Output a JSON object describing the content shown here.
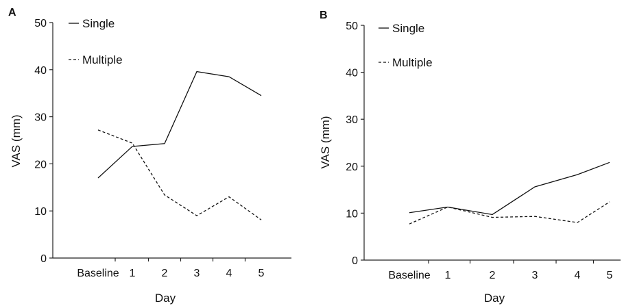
{
  "chart_data": [
    {
      "type": "line",
      "panel_label": "A",
      "categories": [
        "Baseline",
        "1",
        "2",
        "3",
        "4",
        "5"
      ],
      "series": [
        {
          "name": "Single",
          "style": "solid",
          "values": [
            17,
            23.7,
            24.3,
            39.6,
            38.5,
            34.5
          ]
        },
        {
          "name": "Multiple",
          "style": "dashed",
          "values": [
            27.2,
            24.4,
            13.4,
            9,
            13,
            8.1
          ]
        }
      ],
      "xlabel": "Day",
      "ylabel": "VAS (mm)",
      "ylim": [
        0,
        50
      ],
      "yticks": [
        "0",
        "10",
        "20",
        "30",
        "40",
        "50"
      ],
      "grid": false,
      "legend_position": "top-left"
    },
    {
      "type": "line",
      "panel_label": "B",
      "categories": [
        "Baseline",
        "1",
        "2",
        "3",
        "4",
        "5"
      ],
      "series": [
        {
          "name": "Single",
          "style": "solid",
          "values": [
            10.1,
            11.3,
            9.7,
            15.6,
            18.2,
            20.8
          ]
        },
        {
          "name": "Multiple",
          "style": "dashed",
          "values": [
            7.7,
            11.3,
            9.1,
            9.3,
            8,
            12.4
          ]
        }
      ],
      "xlabel": "Day",
      "ylabel": "VAS (mm)",
      "ylim": [
        0,
        50
      ],
      "yticks": [
        "0",
        "10",
        "20",
        "30",
        "40",
        "50"
      ],
      "grid": false,
      "legend_position": "top-left"
    }
  ],
  "colors": {
    "line": "#111111",
    "axis": "#222222"
  }
}
